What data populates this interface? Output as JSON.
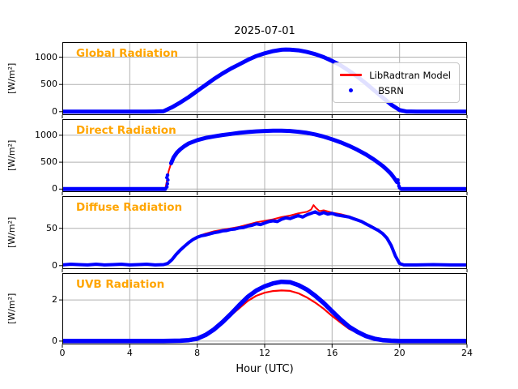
{
  "title": "2025-07-01",
  "xlabel": "Hour (UTC)",
  "colors": {
    "model_red": "#ff0000",
    "obs_blue": "#0000ff",
    "panel_label_orange": "#ffa500",
    "grid": "#b0b0b0",
    "axis": "#000000"
  },
  "legend": {
    "entries": [
      {
        "label": "LibRadtran Model",
        "color": "#ff0000",
        "marker": "line"
      },
      {
        "label": "BSRN",
        "color": "#0000ff",
        "marker": "dot"
      }
    ]
  },
  "chart_data": [
    {
      "type": "line",
      "label": "Global Radiation",
      "ylabel": "[W/m²]",
      "xlim": [
        0,
        24
      ],
      "ylim": [
        -62,
        1275
      ],
      "xticks": [
        0,
        4,
        8,
        12,
        16,
        20,
        24
      ],
      "yticks": [
        0,
        500,
        1000
      ],
      "show_xticklabels": false,
      "series": [
        {
          "name": "LibRadtran Model",
          "color": "#ff0000",
          "width": 2,
          "x": [
            0,
            2,
            4,
            5,
            5.5,
            6,
            6.5,
            7,
            7.5,
            8,
            8.5,
            9,
            9.5,
            10,
            10.5,
            11,
            11.5,
            12,
            12.5,
            13,
            13.25,
            13.5,
            14,
            14.5,
            15,
            15.5,
            16,
            16.5,
            17,
            17.5,
            18,
            18.5,
            19,
            19.5,
            20,
            20.4,
            21,
            22,
            24
          ],
          "y": [
            2,
            2,
            2,
            2,
            3,
            8,
            80,
            170,
            270,
            380,
            490,
            600,
            700,
            790,
            870,
            950,
            1020,
            1070,
            1110,
            1135,
            1140,
            1138,
            1125,
            1095,
            1055,
            1000,
            930,
            850,
            750,
            640,
            520,
            390,
            260,
            130,
            30,
            3,
            2,
            2,
            2
          ]
        },
        {
          "name": "BSRN",
          "color": "#0000ff",
          "width": 5,
          "x": [
            0,
            2,
            4,
            5,
            5.5,
            6,
            6.5,
            7,
            7.5,
            8,
            8.5,
            9,
            9.5,
            10,
            10.5,
            11,
            11.5,
            12,
            12.5,
            13,
            13.25,
            13.5,
            14,
            14.5,
            15,
            15.5,
            16,
            16.5,
            17,
            17.5,
            18,
            18.5,
            19,
            19.5,
            20,
            20.4,
            21,
            22,
            24
          ],
          "y": [
            2,
            2,
            2,
            2,
            3,
            8,
            80,
            170,
            270,
            380,
            490,
            600,
            700,
            790,
            870,
            950,
            1020,
            1070,
            1110,
            1135,
            1140,
            1138,
            1125,
            1095,
            1055,
            1000,
            930,
            850,
            750,
            640,
            520,
            390,
            260,
            130,
            30,
            3,
            2,
            2,
            2
          ]
        }
      ]
    },
    {
      "type": "line",
      "label": "Direct Radiation",
      "ylabel": "[W/m²]",
      "xlim": [
        0,
        24
      ],
      "ylim": [
        -55,
        1300
      ],
      "xticks": [
        0,
        4,
        8,
        12,
        16,
        20,
        24
      ],
      "yticks": [
        0,
        500,
        1000
      ],
      "show_xticklabels": false,
      "series": [
        {
          "name": "LibRadtran Model",
          "color": "#ff0000",
          "width": 2,
          "x": [
            0,
            2,
            4,
            5,
            5.8,
            6.1,
            6.2,
            6.3,
            6.45,
            6.6,
            6.8,
            7,
            7.25,
            7.5,
            8,
            8.5,
            9,
            9.5,
            10,
            10.5,
            11,
            11.5,
            12,
            12.5,
            13,
            13.5,
            14,
            14.5,
            15,
            15.5,
            16,
            16.5,
            17,
            17.5,
            18,
            18.5,
            19,
            19.25,
            19.5,
            19.7,
            19.85,
            20,
            20.15,
            21,
            22,
            24
          ],
          "y": [
            2,
            2,
            2,
            2,
            2,
            2,
            150,
            330,
            480,
            590,
            680,
            740,
            800,
            850,
            910,
            950,
            980,
            1005,
            1025,
            1045,
            1060,
            1072,
            1080,
            1085,
            1085,
            1080,
            1065,
            1045,
            1015,
            975,
            925,
            870,
            805,
            730,
            645,
            545,
            430,
            360,
            280,
            200,
            130,
            40,
            2,
            2,
            2,
            2
          ]
        },
        {
          "name": "BSRN",
          "color": "#0000ff",
          "width": 5,
          "x": [
            0,
            2,
            4,
            5,
            5.8,
            6.1,
            6.28,
            6.45,
            6.6,
            6.8,
            7,
            7.25,
            7.5,
            8,
            8.5,
            9,
            9.5,
            10,
            10.5,
            11,
            11.5,
            12,
            12.5,
            13,
            13.5,
            14,
            14.5,
            15,
            15.5,
            16,
            16.5,
            17,
            17.5,
            18,
            18.5,
            19,
            19.25,
            19.5,
            19.7,
            19.85,
            19.95,
            20.1,
            21,
            22,
            24
          ],
          "y": [
            2,
            2,
            2,
            2,
            2,
            2,
            null,
            480,
            590,
            680,
            740,
            800,
            850,
            910,
            950,
            980,
            1005,
            1025,
            1045,
            1060,
            1072,
            1080,
            1085,
            1085,
            1080,
            1065,
            1045,
            1015,
            975,
            925,
            870,
            805,
            730,
            645,
            545,
            430,
            360,
            280,
            200,
            130,
            null,
            2,
            2,
            2,
            2
          ],
          "dots": [
            [
              6.2,
              40
            ],
            [
              6.23,
              100
            ],
            [
              6.26,
              170
            ],
            [
              6.2,
              215
            ],
            [
              6.24,
              260
            ],
            [
              19.9,
              170
            ],
            [
              19.93,
              110
            ],
            [
              19.96,
              60
            ],
            [
              20.0,
              25
            ]
          ]
        }
      ]
    },
    {
      "type": "line",
      "label": "Diffuse Radiation",
      "ylabel": "[W/m²]",
      "xlim": [
        0,
        24
      ],
      "ylim": [
        -4.5,
        93
      ],
      "xticks": [
        0,
        4,
        8,
        12,
        16,
        20,
        24
      ],
      "yticks": [
        0,
        50
      ],
      "show_xticklabels": false,
      "series": [
        {
          "name": "LibRadtran Model",
          "color": "#ff0000",
          "width": 2,
          "x": [
            0,
            2,
            4,
            6,
            6.25,
            6.5,
            7,
            7.5,
            8,
            8.5,
            9,
            9.5,
            10,
            10.5,
            11,
            11.5,
            12,
            12.5,
            13,
            13.5,
            14,
            14.5,
            14.75,
            14.9,
            15.05,
            15.25,
            15.5,
            16,
            16.5,
            17,
            17.5,
            18,
            18.5,
            19,
            19.25,
            19.5,
            19.75,
            20,
            20.3,
            21,
            22,
            24
          ],
          "y": [
            1.5,
            1.5,
            1.5,
            1.5,
            4,
            9,
            22,
            32,
            39,
            43,
            46,
            48,
            50,
            52,
            55,
            58,
            60,
            62,
            65,
            67,
            70,
            72,
            75,
            81,
            77,
            73,
            74,
            71,
            69,
            66,
            62,
            57,
            51,
            44,
            37,
            27,
            14,
            4,
            1,
            1,
            1,
            1
          ]
        },
        {
          "name": "BSRN",
          "color": "#0000ff",
          "width": 4,
          "x": [
            0,
            0.5,
            1,
            1.5,
            2,
            2.5,
            3,
            3.5,
            4,
            4.5,
            5,
            5.5,
            6,
            6.25,
            6.5,
            6.75,
            7,
            7.25,
            7.5,
            7.75,
            8,
            8.25,
            8.5,
            8.75,
            9,
            9.25,
            9.5,
            9.75,
            10,
            10.25,
            10.5,
            10.75,
            11,
            11.25,
            11.5,
            11.75,
            12,
            12.25,
            12.5,
            12.75,
            13,
            13.25,
            13.5,
            13.75,
            14,
            14.25,
            14.5,
            14.75,
            15,
            15.25,
            15.5,
            15.75,
            16,
            16.25,
            16.5,
            16.75,
            17,
            17.25,
            17.5,
            17.75,
            18,
            18.25,
            18.5,
            18.75,
            19,
            19.25,
            19.5,
            19.75,
            20,
            20.25,
            21,
            22,
            23,
            24
          ],
          "y": [
            1,
            2,
            1.5,
            1,
            2,
            1,
            1.5,
            2,
            1,
            1.5,
            2,
            1,
            1.5,
            3,
            8,
            15,
            21,
            26,
            31,
            35,
            38,
            40,
            41,
            42.5,
            44,
            45,
            46.5,
            47,
            48.5,
            49,
            50.5,
            51,
            53,
            54,
            56,
            55,
            57,
            59,
            60,
            59,
            62,
            64,
            63,
            65,
            67,
            65,
            68,
            70,
            72,
            69,
            71,
            69,
            70,
            68,
            67,
            66,
            65,
            63,
            61,
            59,
            56,
            53,
            50,
            47,
            43,
            37,
            27,
            13,
            3,
            1,
            1,
            1.5,
            1,
            1
          ]
        }
      ]
    },
    {
      "type": "line",
      "label": "UVB Radiation",
      "ylabel": "[W/m²]",
      "xlim": [
        0,
        24
      ],
      "ylim": [
        -0.16,
        3.3
      ],
      "xticks": [
        0,
        4,
        8,
        12,
        16,
        20,
        24
      ],
      "yticks": [
        0,
        2
      ],
      "show_xticklabels": true,
      "series": [
        {
          "name": "LibRadtran Model",
          "color": "#ff0000",
          "width": 2.2,
          "x": [
            0,
            2,
            4,
            6,
            7,
            7.5,
            8,
            8.5,
            9,
            9.5,
            10,
            10.5,
            11,
            11.5,
            12,
            12.5,
            13,
            13.5,
            14,
            14.5,
            15,
            15.5,
            16,
            16.5,
            17,
            17.5,
            18,
            18.5,
            19,
            19.5,
            20,
            21,
            22,
            24
          ],
          "y": [
            0.01,
            0.01,
            0.01,
            0.01,
            0.02,
            0.04,
            0.1,
            0.27,
            0.52,
            0.85,
            1.25,
            1.6,
            1.95,
            2.2,
            2.35,
            2.43,
            2.46,
            2.44,
            2.32,
            2.12,
            1.87,
            1.57,
            1.22,
            0.9,
            0.6,
            0.4,
            0.23,
            0.12,
            0.05,
            0.02,
            0.01,
            0.01,
            0.01,
            0.01
          ]
        },
        {
          "name": "BSRN",
          "color": "#0000ff",
          "width": 5.5,
          "x": [
            0,
            2,
            4,
            6,
            7,
            7.5,
            8,
            8.5,
            9,
            9.5,
            10,
            10.5,
            11,
            11.5,
            12,
            12.5,
            13,
            13.5,
            14,
            14.5,
            15,
            15.5,
            16,
            16.5,
            17,
            17.5,
            18,
            18.5,
            19,
            19.5,
            20,
            21,
            22,
            24
          ],
          "y": [
            0.01,
            0.01,
            0.01,
            0.01,
            0.02,
            0.05,
            0.12,
            0.3,
            0.57,
            0.92,
            1.32,
            1.75,
            2.15,
            2.45,
            2.66,
            2.8,
            2.88,
            2.86,
            2.72,
            2.5,
            2.2,
            1.85,
            1.45,
            1.05,
            0.7,
            0.45,
            0.25,
            0.12,
            0.05,
            0.02,
            0.01,
            0.01,
            0.01,
            0.01
          ]
        }
      ]
    }
  ]
}
